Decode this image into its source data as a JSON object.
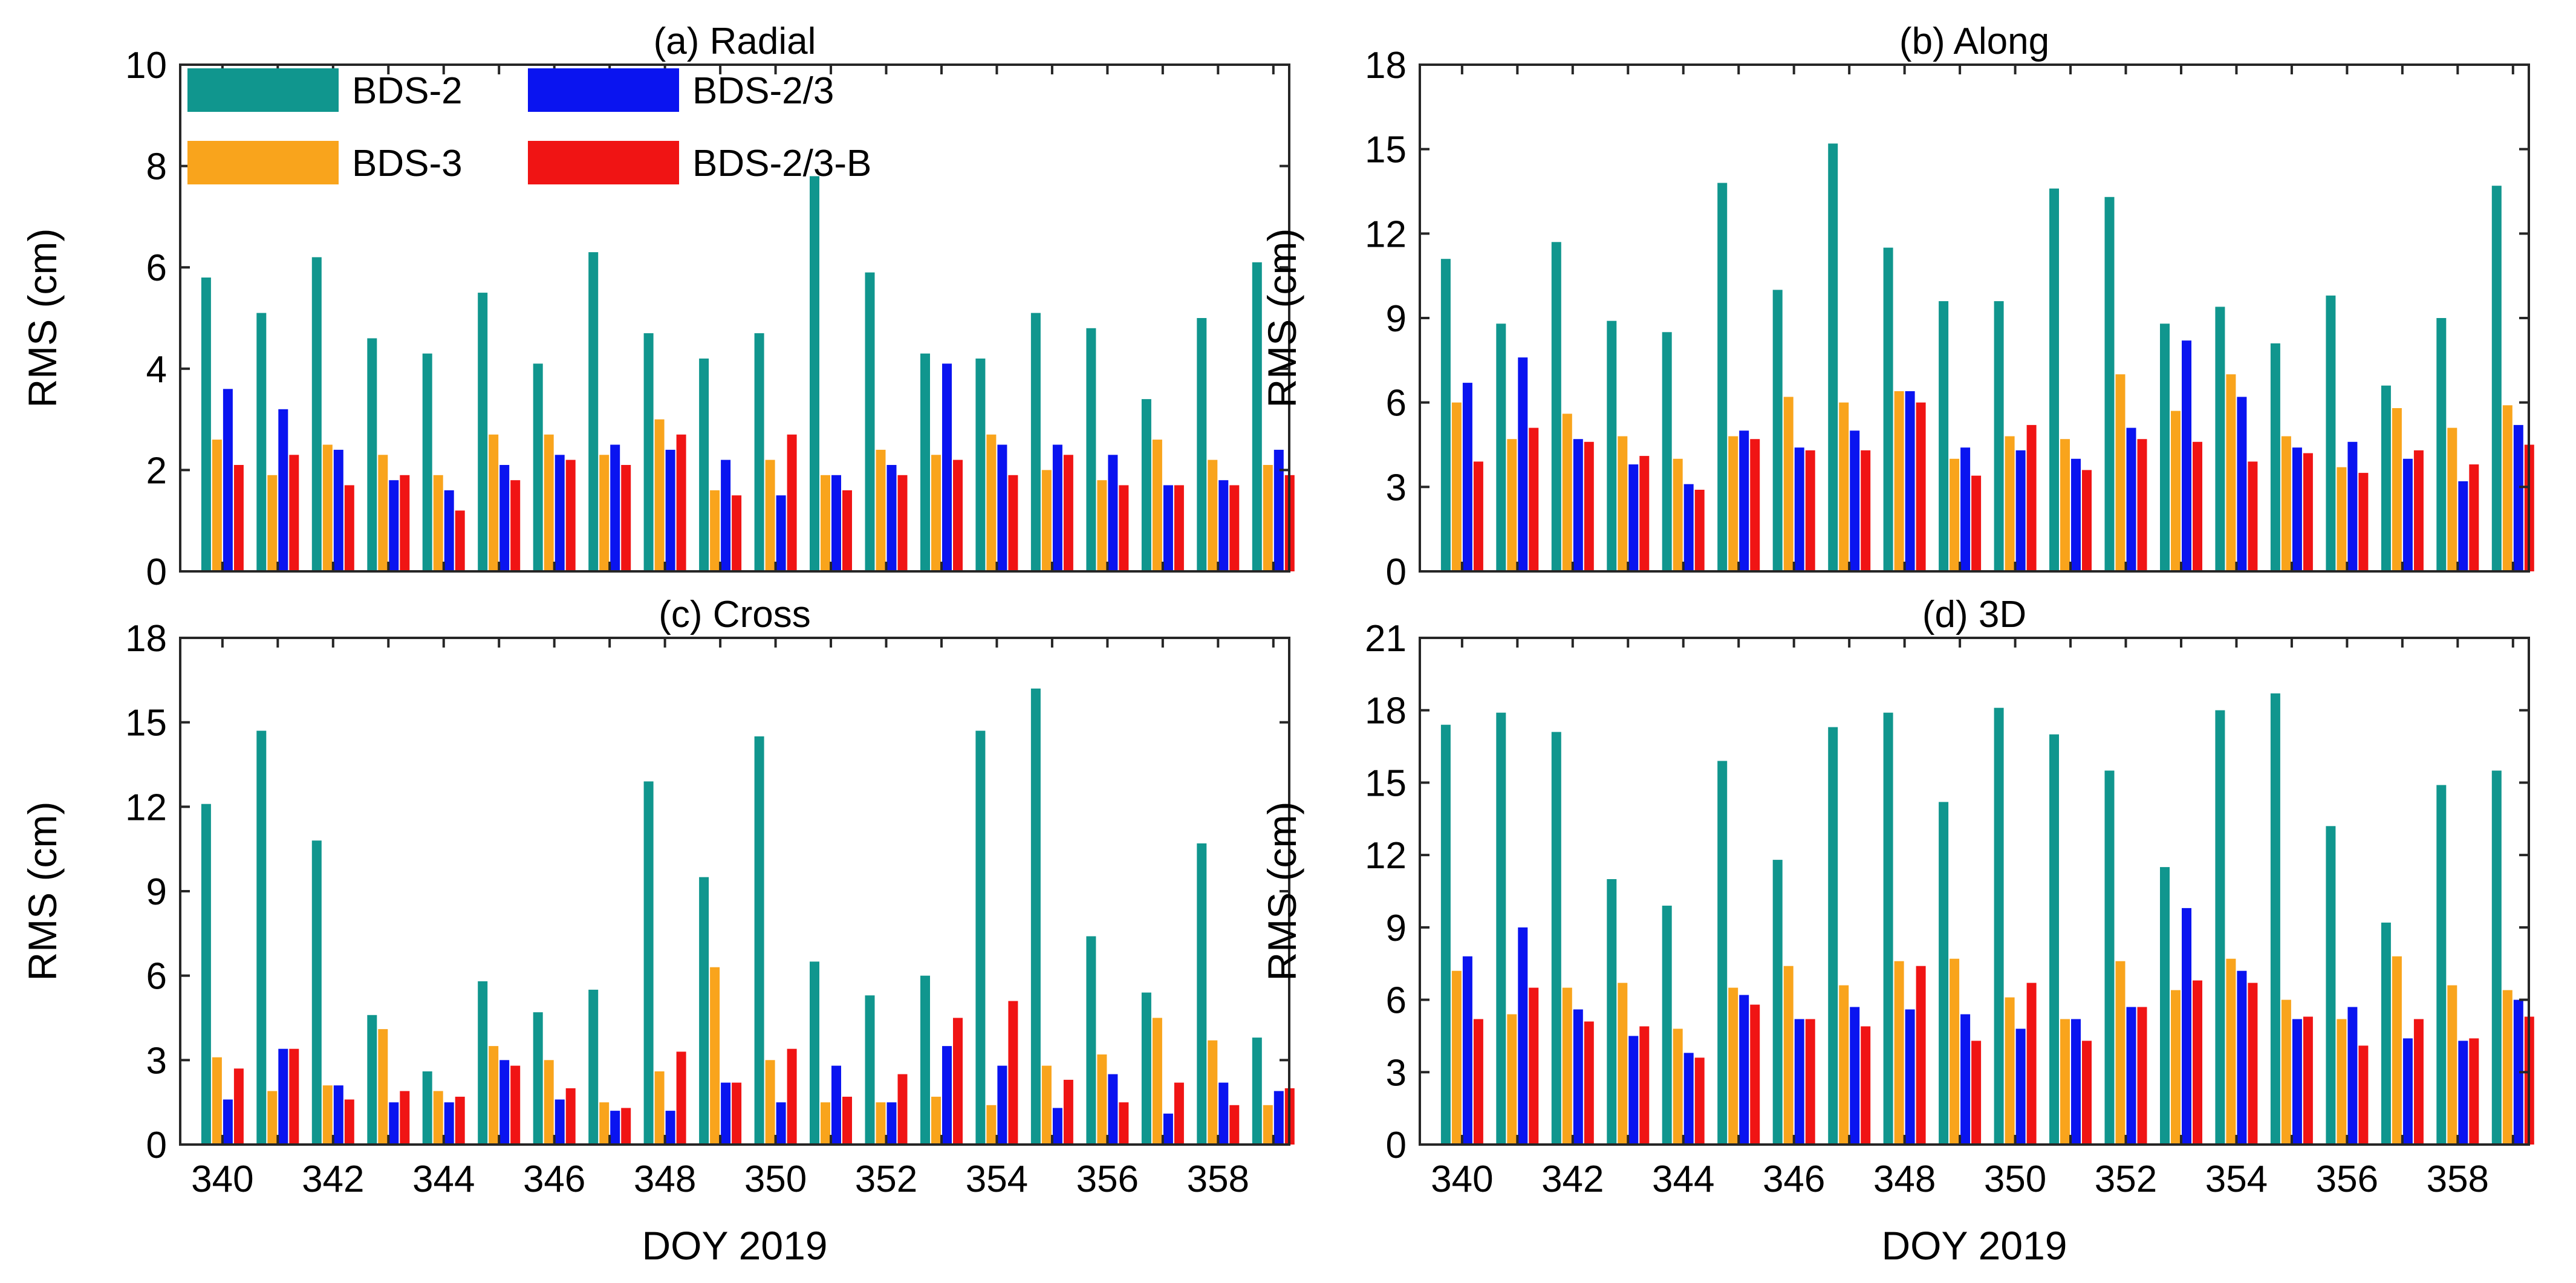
{
  "chart_data": [
    {
      "type": "bar",
      "title": "(a) Radial",
      "xlabel": "",
      "ylabel": "RMS (cm)",
      "ylim": [
        0,
        10
      ],
      "yticks": [
        0,
        2,
        4,
        6,
        8,
        10
      ],
      "categories": [
        340,
        341,
        342,
        343,
        344,
        345,
        346,
        347,
        348,
        349,
        350,
        351,
        352,
        353,
        354,
        355,
        356,
        357,
        358,
        359
      ],
      "xticks": [
        "340",
        "342",
        "344",
        "346",
        "348",
        "350",
        "352",
        "354",
        "356",
        "358"
      ],
      "series": [
        {
          "name": "BDS-2",
          "values": [
            5.8,
            5.1,
            6.2,
            4.6,
            4.3,
            5.5,
            4.1,
            6.3,
            4.7,
            4.2,
            4.7,
            7.8,
            5.9,
            4.3,
            4.2,
            5.1,
            4.8,
            3.4,
            5.0,
            6.1
          ]
        },
        {
          "name": "BDS-3",
          "values": [
            2.6,
            1.9,
            2.5,
            2.3,
            1.9,
            2.7,
            2.7,
            2.3,
            3.0,
            1.6,
            2.2,
            1.9,
            2.4,
            2.3,
            2.7,
            2.0,
            1.8,
            2.6,
            2.2,
            2.1
          ]
        },
        {
          "name": "BDS-2/3",
          "values": [
            3.6,
            3.2,
            2.4,
            1.8,
            1.6,
            2.1,
            2.3,
            2.5,
            2.4,
            2.2,
            1.5,
            1.9,
            2.1,
            4.1,
            2.5,
            2.5,
            2.3,
            1.7,
            1.8,
            2.4
          ]
        },
        {
          "name": "BDS-2/3-B",
          "values": [
            2.1,
            2.3,
            1.7,
            1.9,
            1.2,
            1.8,
            2.2,
            2.1,
            2.7,
            1.5,
            2.7,
            1.6,
            1.9,
            2.2,
            1.9,
            2.3,
            1.7,
            1.7,
            1.7,
            1.9
          ]
        }
      ],
      "legend": "top-left"
    },
    {
      "type": "bar",
      "title": "(b) Along",
      "xlabel": "",
      "ylabel": "RMS (cm)",
      "ylim": [
        0,
        18
      ],
      "yticks": [
        0,
        3,
        6,
        9,
        12,
        15,
        18
      ],
      "categories": [
        340,
        341,
        342,
        343,
        344,
        345,
        346,
        347,
        348,
        349,
        350,
        351,
        352,
        353,
        354,
        355,
        356,
        357,
        358,
        359
      ],
      "xticks": [],
      "series": [
        {
          "name": "BDS-2",
          "values": [
            11.1,
            8.8,
            11.7,
            8.9,
            8.5,
            13.8,
            10.0,
            15.2,
            11.5,
            9.6,
            9.6,
            13.6,
            13.3,
            8.8,
            9.4,
            8.1,
            9.8,
            6.6,
            9.0,
            13.7
          ]
        },
        {
          "name": "BDS-3",
          "values": [
            6.0,
            4.7,
            5.6,
            4.8,
            4.0,
            4.8,
            6.2,
            6.0,
            6.4,
            4.0,
            4.8,
            4.7,
            7.0,
            5.7,
            7.0,
            4.8,
            3.7,
            5.8,
            5.1,
            5.9
          ]
        },
        {
          "name": "BDS-2/3",
          "values": [
            6.7,
            7.6,
            4.7,
            3.8,
            3.1,
            5.0,
            4.4,
            5.0,
            6.4,
            4.4,
            4.3,
            4.0,
            5.1,
            8.2,
            6.2,
            4.4,
            4.6,
            4.0,
            3.2,
            5.2
          ]
        },
        {
          "name": "BDS-2/3-B",
          "values": [
            3.9,
            5.1,
            4.6,
            4.1,
            2.9,
            4.7,
            4.3,
            4.3,
            6.0,
            3.4,
            5.2,
            3.6,
            4.7,
            4.6,
            3.9,
            4.2,
            3.5,
            4.3,
            3.8,
            4.5
          ]
        }
      ]
    },
    {
      "type": "bar",
      "title": "(c) Cross",
      "xlabel": "DOY 2019",
      "ylabel": "RMS (cm)",
      "ylim": [
        0,
        18
      ],
      "yticks": [
        0,
        3,
        6,
        9,
        12,
        15,
        18
      ],
      "categories": [
        340,
        341,
        342,
        343,
        344,
        345,
        346,
        347,
        348,
        349,
        350,
        351,
        352,
        353,
        354,
        355,
        356,
        357,
        358,
        359
      ],
      "xticks": [
        "340",
        "342",
        "344",
        "346",
        "348",
        "350",
        "352",
        "354",
        "356",
        "358"
      ],
      "series": [
        {
          "name": "BDS-2",
          "values": [
            12.1,
            14.7,
            10.8,
            4.6,
            2.6,
            5.8,
            4.7,
            5.5,
            12.9,
            9.5,
            14.5,
            6.5,
            5.3,
            6.0,
            14.7,
            16.2,
            7.4,
            5.4,
            10.7,
            3.8
          ]
        },
        {
          "name": "BDS-3",
          "values": [
            3.1,
            1.9,
            2.1,
            4.1,
            1.9,
            3.5,
            3.0,
            1.5,
            2.6,
            6.3,
            3.0,
            1.5,
            1.5,
            1.7,
            1.4,
            2.8,
            3.2,
            4.5,
            3.7,
            1.4
          ]
        },
        {
          "name": "BDS-2/3",
          "values": [
            1.6,
            3.4,
            2.1,
            1.5,
            1.5,
            3.0,
            1.6,
            1.2,
            1.2,
            2.2,
            1.5,
            2.8,
            1.5,
            3.5,
            2.8,
            1.3,
            2.5,
            1.1,
            2.2,
            1.9
          ]
        },
        {
          "name": "BDS-2/3-B",
          "values": [
            2.7,
            3.4,
            1.6,
            1.9,
            1.7,
            2.8,
            2.0,
            1.3,
            3.3,
            2.2,
            3.4,
            1.7,
            2.5,
            4.5,
            5.1,
            2.3,
            1.5,
            2.2,
            1.4,
            2.0
          ]
        }
      ]
    },
    {
      "type": "bar",
      "title": "(d) 3D",
      "xlabel": "DOY 2019",
      "ylabel": "RMS (cm)",
      "ylim": [
        0,
        21
      ],
      "yticks": [
        0,
        3,
        6,
        9,
        12,
        15,
        18,
        21
      ],
      "categories": [
        340,
        341,
        342,
        343,
        344,
        345,
        346,
        347,
        348,
        349,
        350,
        351,
        352,
        353,
        354,
        355,
        356,
        357,
        358,
        359
      ],
      "xticks": [
        "340",
        "342",
        "344",
        "346",
        "348",
        "350",
        "352",
        "354",
        "356",
        "358"
      ],
      "series": [
        {
          "name": "BDS-2",
          "values": [
            17.4,
            17.9,
            17.1,
            11.0,
            9.9,
            15.9,
            11.8,
            17.3,
            17.9,
            14.2,
            18.1,
            17.0,
            15.5,
            11.5,
            18.0,
            18.7,
            13.2,
            9.2,
            14.9,
            15.5
          ]
        },
        {
          "name": "BDS-3",
          "values": [
            7.2,
            5.4,
            6.5,
            6.7,
            4.8,
            6.5,
            7.4,
            6.6,
            7.6,
            7.7,
            6.1,
            5.2,
            7.6,
            6.4,
            7.7,
            6.0,
            5.2,
            7.8,
            6.6,
            6.4
          ]
        },
        {
          "name": "BDS-2/3",
          "values": [
            7.8,
            9.0,
            5.6,
            4.5,
            3.8,
            6.2,
            5.2,
            5.7,
            5.6,
            5.4,
            4.8,
            5.2,
            5.7,
            9.8,
            7.2,
            5.2,
            5.7,
            4.4,
            4.3,
            6.0
          ]
        },
        {
          "name": "BDS-2/3-B",
          "values": [
            5.2,
            6.5,
            5.1,
            4.9,
            3.6,
            5.8,
            5.2,
            4.9,
            7.4,
            4.3,
            6.7,
            4.3,
            5.7,
            6.8,
            6.7,
            5.3,
            4.1,
            5.2,
            4.4,
            5.3
          ]
        }
      ]
    }
  ],
  "colors": {
    "BDS-2": "#10968e",
    "BDS-3": "#f9a41c",
    "BDS-2/3": "#0a14f0",
    "BDS-2/3-B": "#f01414"
  }
}
